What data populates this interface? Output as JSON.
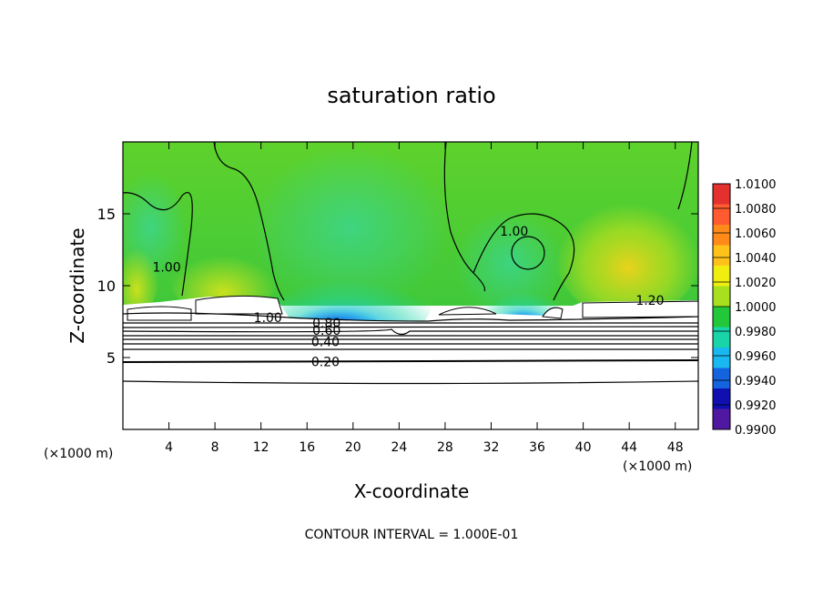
{
  "chart_data": {
    "type": "heatmap",
    "title": "saturation ratio",
    "xlabel": "X-coordinate",
    "ylabel": "Z-coordinate",
    "x_unit_label": "(×1000 m)",
    "y_unit_label": "(×1000 m)",
    "xlim": [
      0,
      50
    ],
    "ylim": [
      0,
      20
    ],
    "x_ticks": [
      4,
      8,
      12,
      16,
      20,
      24,
      28,
      32,
      36,
      40,
      44,
      48
    ],
    "y_ticks": [
      5,
      10,
      15
    ],
    "footer": "CONTOUR INTERVAL = 1.000E-01",
    "colorbar": {
      "min": 0.99,
      "max": 1.01,
      "labels": [
        "1.0100",
        "1.0080",
        "1.0060",
        "1.0040",
        "1.0020",
        "1.0000",
        "0.9980",
        "0.9960",
        "0.9940",
        "0.9920",
        "0.9900"
      ],
      "colors": [
        "#e53030",
        "#ff5a30",
        "#ff8a1a",
        "#ffc21a",
        "#f0ee10",
        "#a6e01e",
        "#22c83a",
        "#18d4a8",
        "#1ab8f0",
        "#1464e0",
        "#1010b0",
        "#5018a0"
      ]
    },
    "contour_labels": [
      {
        "text": "1.00",
        "x": 3.8,
        "y": 11.3
      },
      {
        "text": "1.00",
        "x": 34.0,
        "y": 13.8
      },
      {
        "text": "1.20",
        "x": 45.8,
        "y": 9.0
      },
      {
        "text": "1.00",
        "x": 12.6,
        "y": 7.8
      },
      {
        "text": "0.80",
        "x": 17.7,
        "y": 7.4
      },
      {
        "text": "0.60",
        "x": 17.7,
        "y": 6.9
      },
      {
        "text": "0.40",
        "x": 17.6,
        "y": 6.1
      },
      {
        "text": "0.20",
        "x": 17.6,
        "y": 4.7
      }
    ]
  }
}
